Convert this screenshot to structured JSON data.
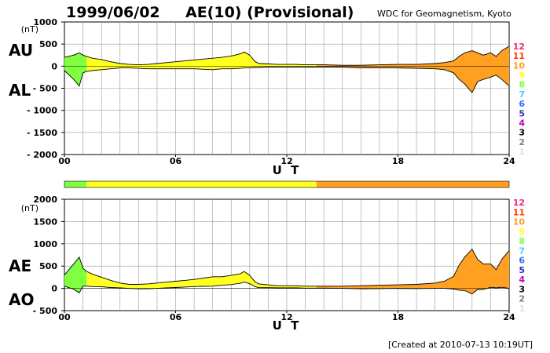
{
  "header": {
    "date": "1999/06/02",
    "title": "AE(10) (Provisional)",
    "source": "WDC for Geomagnetism, Kyoto"
  },
  "footer": {
    "created": "[Created at 2010-07-13 10:19UT]"
  },
  "colors": {
    "level_scale": [
      "#e0e0e0",
      "#808080",
      "#000000",
      "#c000c0",
      "#3030c0",
      "#3070ff",
      "#40d0ff",
      "#80ff40",
      "#ffff20",
      "#ffa020",
      "#ff4000",
      "#ff2080"
    ],
    "trace_fill_by_level": {
      "9": "#f4f424",
      "10": "#f5a623",
      "8": "#9ae630"
    }
  },
  "level_labels": [
    "1",
    "2",
    "3",
    "4",
    "5",
    "6",
    "7",
    "8",
    "9",
    "10",
    "11",
    "12"
  ],
  "activity_bar": {
    "segments": [
      {
        "from": 0,
        "to": 1.2,
        "level": 8
      },
      {
        "from": 1.2,
        "to": 13.6,
        "level": 9
      },
      {
        "from": 13.6,
        "to": 24,
        "level": 10
      }
    ]
  },
  "chart_data": [
    {
      "type": "area",
      "panel": "AU/AL",
      "upper_label": "AU",
      "lower_label": "AL",
      "unit": "(nT)",
      "xlabel": "U T",
      "xlim": [
        0,
        24
      ],
      "ylim": [
        -2000,
        1000
      ],
      "x_ticks": [
        "00",
        "06",
        "12",
        "18",
        "24"
      ],
      "x_tick_values": [
        0,
        6,
        12,
        18,
        24
      ],
      "y_ticks": [
        "1000",
        "500",
        "0",
        "- 500",
        "- 1000",
        "- 1500",
        "- 2000"
      ],
      "y_tick_values": [
        1000,
        500,
        0,
        -500,
        -1000,
        -1500,
        -2000
      ],
      "grid": true,
      "series": [
        {
          "name": "AU",
          "x": [
            0,
            0.5,
            0.8,
            1,
            1.2,
            1.5,
            2,
            2.5,
            3,
            3.5,
            4,
            4.5,
            5,
            5.5,
            6,
            6.5,
            7,
            7.5,
            8,
            8.5,
            9,
            9.5,
            9.7,
            10,
            10.3,
            10.5,
            11,
            11.5,
            12,
            12.5,
            13,
            13.5,
            14,
            15,
            16,
            17,
            18,
            19,
            20,
            20.5,
            21,
            21.3,
            21.6,
            22,
            22.3,
            22.6,
            23,
            23.3,
            23.6,
            24
          ],
          "y": [
            200,
            250,
            300,
            250,
            220,
            180,
            150,
            100,
            60,
            40,
            30,
            40,
            60,
            80,
            100,
            120,
            140,
            160,
            180,
            200,
            230,
            280,
            320,
            250,
            100,
            60,
            50,
            40,
            40,
            40,
            30,
            30,
            30,
            20,
            20,
            30,
            40,
            40,
            60,
            80,
            120,
            220,
            300,
            350,
            300,
            250,
            300,
            220,
            350,
            450
          ]
        },
        {
          "name": "AL",
          "x": [
            0,
            0.5,
            0.8,
            1,
            1.2,
            1.5,
            2,
            2.5,
            3,
            3.5,
            4,
            4.5,
            5,
            5.5,
            6,
            6.5,
            7,
            7.5,
            8,
            8.5,
            9,
            9.5,
            9.7,
            10,
            10.3,
            10.5,
            11,
            11.5,
            12,
            12.5,
            13,
            13.5,
            14,
            15,
            16,
            17,
            18,
            19,
            20,
            20.5,
            21,
            21.3,
            21.6,
            22,
            22.3,
            22.6,
            23,
            23.3,
            23.6,
            24
          ],
          "y": [
            -100,
            -300,
            -450,
            -150,
            -120,
            -100,
            -80,
            -60,
            -40,
            -40,
            -50,
            -60,
            -60,
            -60,
            -60,
            -60,
            -60,
            -70,
            -80,
            -60,
            -60,
            -50,
            -40,
            -40,
            -30,
            -30,
            -20,
            -20,
            -20,
            -20,
            -20,
            -20,
            -20,
            -20,
            -40,
            -40,
            -40,
            -50,
            -60,
            -80,
            -150,
            -300,
            -400,
            -600,
            -350,
            -300,
            -250,
            -200,
            -300,
            -450
          ]
        }
      ]
    },
    {
      "type": "area",
      "panel": "AE/AO",
      "upper_label": "AE",
      "lower_label": "AO",
      "unit": "(nT)",
      "xlabel": "U T",
      "xlim": [
        0,
        24
      ],
      "ylim": [
        -500,
        2000
      ],
      "x_ticks": [
        "00",
        "06",
        "12",
        "18",
        "24"
      ],
      "x_tick_values": [
        0,
        6,
        12,
        18,
        24
      ],
      "y_ticks": [
        "2000",
        "1500",
        "1000",
        "500",
        "0",
        "- 500"
      ],
      "y_tick_values": [
        2000,
        1500,
        1000,
        500,
        0,
        -500
      ],
      "grid": true,
      "series": [
        {
          "name": "AE",
          "x": [
            0,
            0.5,
            0.8,
            1,
            1.2,
            1.5,
            2,
            2.5,
            3,
            3.5,
            4,
            4.5,
            5,
            5.5,
            6,
            6.5,
            7,
            7.5,
            8,
            8.5,
            9,
            9.5,
            9.7,
            10,
            10.3,
            10.5,
            11,
            11.5,
            12,
            12.5,
            13,
            13.5,
            14,
            15,
            16,
            17,
            18,
            19,
            20,
            20.5,
            21,
            21.3,
            21.6,
            22,
            22.3,
            22.6,
            23,
            23.3,
            23.6,
            24
          ],
          "y": [
            300,
            550,
            700,
            450,
            380,
            320,
            250,
            180,
            120,
            90,
            90,
            100,
            120,
            140,
            160,
            180,
            200,
            230,
            260,
            260,
            290,
            330,
            380,
            290,
            140,
            100,
            80,
            60,
            60,
            60,
            50,
            50,
            50,
            50,
            60,
            70,
            80,
            90,
            120,
            160,
            270,
            520,
            700,
            880,
            650,
            550,
            550,
            420,
            650,
            850
          ]
        },
        {
          "name": "AO",
          "x": [
            0,
            0.5,
            0.8,
            1,
            1.2,
            1.5,
            2,
            2.5,
            3,
            3.5,
            4,
            4.5,
            5,
            5.5,
            6,
            6.5,
            7,
            7.5,
            8,
            8.5,
            9,
            9.5,
            9.7,
            10,
            10.3,
            10.5,
            11,
            11.5,
            12,
            12.5,
            13,
            13.5,
            14,
            15,
            16,
            17,
            18,
            19,
            20,
            20.5,
            21,
            21.3,
            21.6,
            22,
            22.3,
            22.6,
            23,
            23.3,
            23.6,
            24
          ],
          "y": [
            50,
            -20,
            -100,
            50,
            50,
            40,
            35,
            20,
            10,
            0,
            -10,
            -10,
            0,
            10,
            20,
            30,
            40,
            45,
            50,
            70,
            85,
            115,
            140,
            105,
            35,
            15,
            15,
            10,
            10,
            10,
            5,
            5,
            5,
            0,
            -10,
            -5,
            0,
            -5,
            0,
            0,
            -15,
            -40,
            -50,
            -125,
            -25,
            -25,
            25,
            10,
            25,
            0
          ]
        }
      ]
    }
  ]
}
